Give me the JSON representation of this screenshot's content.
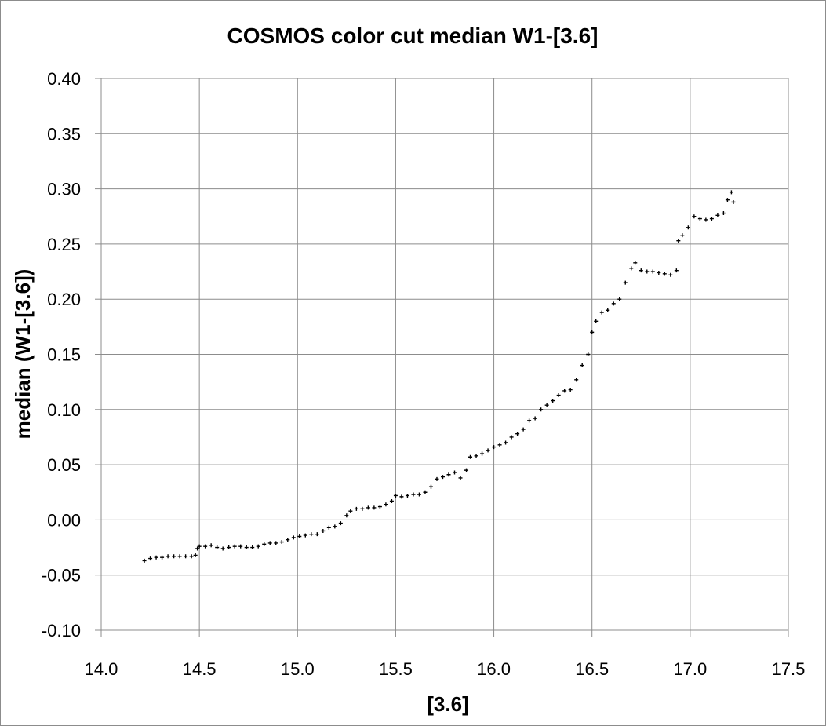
{
  "chart_data": {
    "type": "scatter",
    "title": "COSMOS color cut median W1-[3.6]",
    "xlabel": "[3.6]",
    "ylabel": "median (W1-[3.6])",
    "xlim": [
      14.0,
      17.5
    ],
    "ylim": [
      -0.1,
      0.4
    ],
    "x_ticks": [
      "14.0",
      "14.5",
      "15.0",
      "15.5",
      "16.0",
      "16.5",
      "17.0",
      "17.5"
    ],
    "y_ticks": [
      "-0.10",
      "-0.05",
      "0.00",
      "0.05",
      "0.10",
      "0.15",
      "0.20",
      "0.25",
      "0.30",
      "0.35",
      "0.40"
    ],
    "grid": true,
    "marker_color": "#000000",
    "series": [
      {
        "x": [
          14.22,
          14.25,
          14.28,
          14.31,
          14.34,
          14.37,
          14.4,
          14.43,
          14.46,
          14.48,
          14.49,
          14.5,
          14.53,
          14.56,
          14.59,
          14.62,
          14.65,
          14.68,
          14.71,
          14.74,
          14.77,
          14.8,
          14.83,
          14.86,
          14.89,
          14.92,
          14.95,
          14.98,
          15.01,
          15.04,
          15.07,
          15.1,
          15.13,
          15.16,
          15.19,
          15.22,
          15.25,
          15.27,
          15.3,
          15.33,
          15.36,
          15.39,
          15.42,
          15.45,
          15.48,
          15.5,
          15.53,
          15.56,
          15.59,
          15.62,
          15.65,
          15.68,
          15.71,
          15.74,
          15.77,
          15.8,
          15.83,
          15.86,
          15.88,
          15.91,
          15.94,
          15.97,
          16.0,
          16.03,
          16.06,
          16.09,
          16.12,
          16.15,
          16.18,
          16.21,
          16.24,
          16.27,
          16.3,
          16.33,
          16.36,
          16.39,
          16.42,
          16.45,
          16.48,
          16.5,
          16.52,
          16.55,
          16.58,
          16.61,
          16.64,
          16.67,
          16.7,
          16.72,
          16.75,
          16.78,
          16.81,
          16.84,
          16.87,
          16.9,
          16.93,
          16.94,
          16.96,
          16.99,
          17.02,
          17.05,
          17.08,
          17.11,
          17.14,
          17.17,
          17.19,
          17.21,
          17.22
        ],
        "y": [
          -0.037,
          -0.035,
          -0.034,
          -0.034,
          -0.033,
          -0.033,
          -0.033,
          -0.033,
          -0.033,
          -0.032,
          -0.026,
          -0.024,
          -0.024,
          -0.023,
          -0.025,
          -0.026,
          -0.025,
          -0.024,
          -0.024,
          -0.025,
          -0.025,
          -0.024,
          -0.022,
          -0.021,
          -0.021,
          -0.02,
          -0.018,
          -0.016,
          -0.015,
          -0.014,
          -0.013,
          -0.013,
          -0.01,
          -0.007,
          -0.006,
          -0.003,
          0.004,
          0.008,
          0.01,
          0.01,
          0.011,
          0.011,
          0.012,
          0.014,
          0.017,
          0.022,
          0.021,
          0.022,
          0.023,
          0.023,
          0.025,
          0.03,
          0.037,
          0.039,
          0.041,
          0.043,
          0.038,
          0.045,
          0.057,
          0.058,
          0.06,
          0.063,
          0.066,
          0.068,
          0.07,
          0.075,
          0.078,
          0.082,
          0.09,
          0.092,
          0.1,
          0.104,
          0.108,
          0.113,
          0.117,
          0.118,
          0.127,
          0.14,
          0.15,
          0.17,
          0.18,
          0.188,
          0.19,
          0.196,
          0.2,
          0.215,
          0.228,
          0.233,
          0.226,
          0.225,
          0.225,
          0.224,
          0.223,
          0.222,
          0.226,
          0.253,
          0.258,
          0.265,
          0.275,
          0.273,
          0.272,
          0.273,
          0.276,
          0.278,
          0.29,
          0.297,
          0.288
        ]
      }
    ]
  }
}
